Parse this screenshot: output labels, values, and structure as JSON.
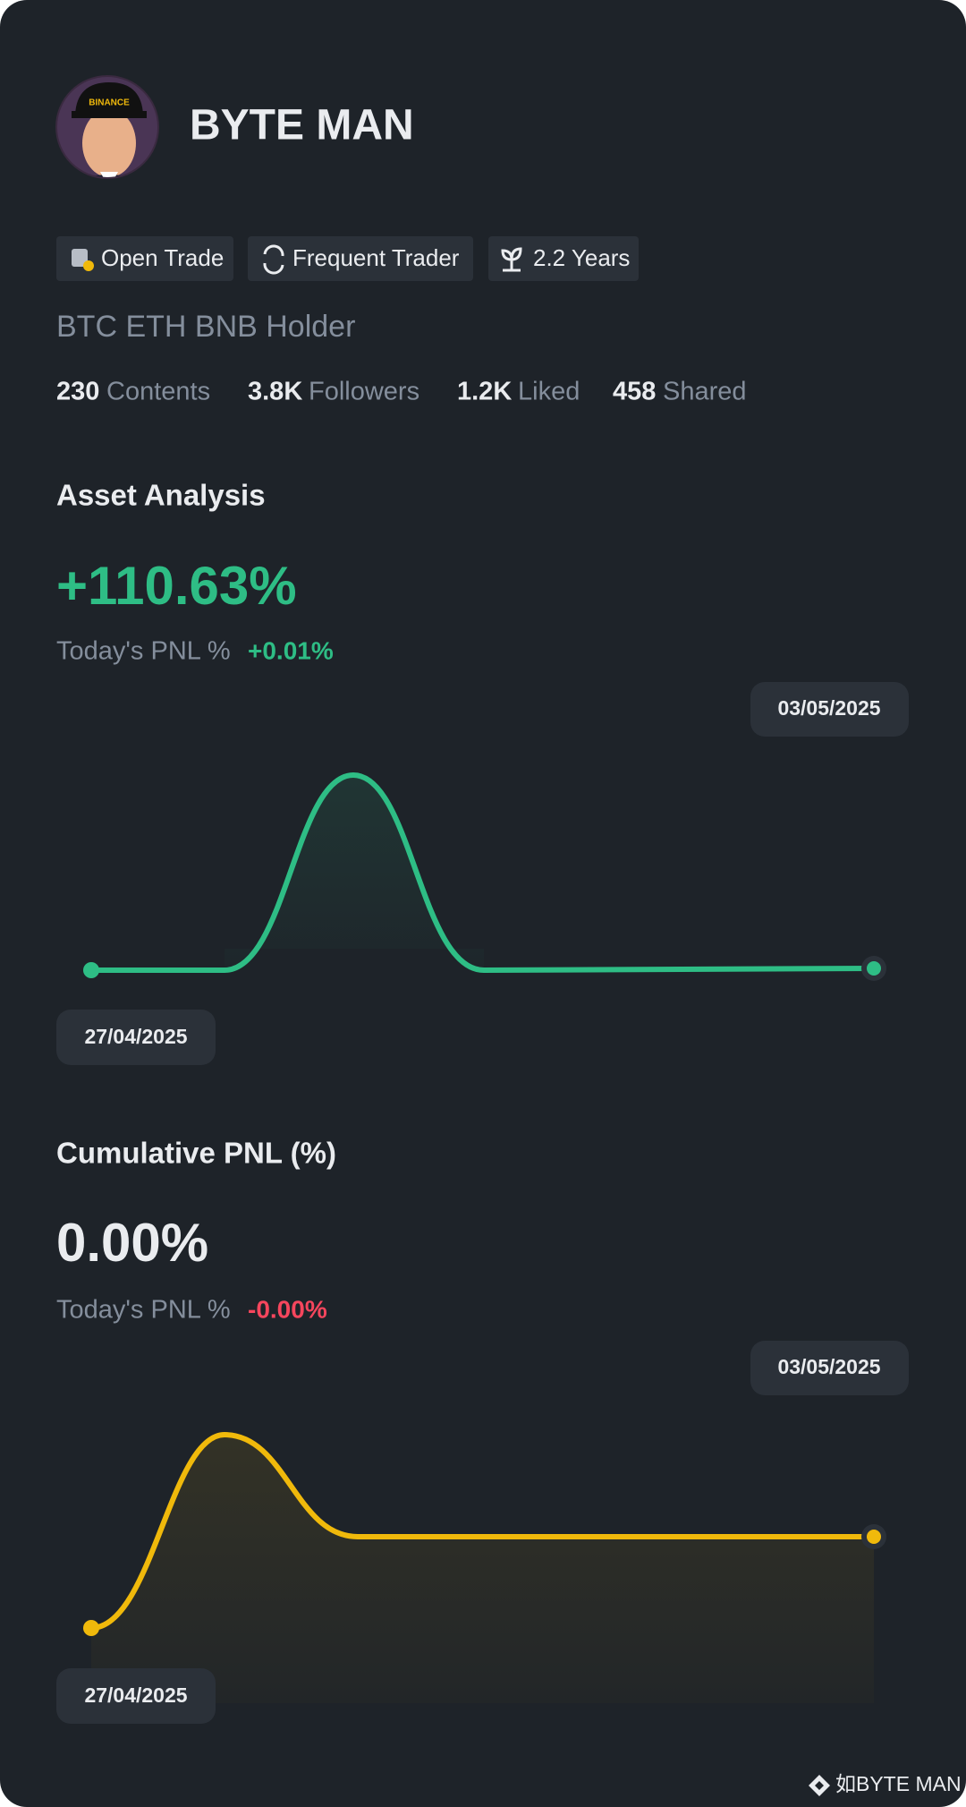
{
  "profile": {
    "name": "BYTE MAN",
    "tags": [
      "Open Trade",
      "Frequent Trader",
      "2.2 Years"
    ],
    "bio": "BTC ETH BNB Holder",
    "stats": [
      {
        "value": "230",
        "label": "Contents"
      },
      {
        "value": "3.8K",
        "label": "Followers"
      },
      {
        "value": "1.2K",
        "label": "Liked"
      },
      {
        "value": "458",
        "label": "Shared"
      }
    ]
  },
  "sections": [
    {
      "title": "Asset Analysis",
      "value": "+110.63%",
      "today_label": "Today's PNL %",
      "today_value": "+0.01%",
      "start_date": "27/04/2025",
      "end_date": "03/05/2025"
    },
    {
      "title": "Cumulative PNL (%)",
      "value": "0.00%",
      "today_label": "Today's PNL %",
      "today_value": "-0.00%",
      "start_date": "27/04/2025",
      "end_date": "03/05/2025"
    }
  ],
  "footer": "如BYTE MAN"
}
